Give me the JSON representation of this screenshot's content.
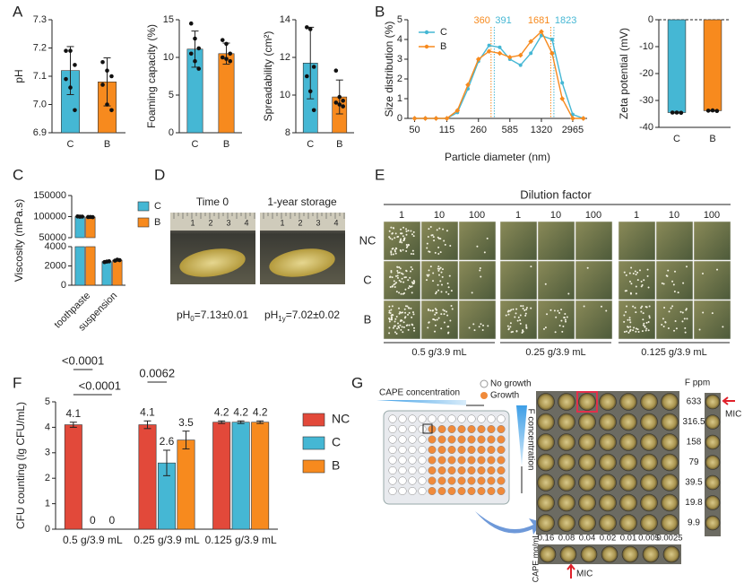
{
  "panel_labels": [
    "A",
    "B",
    "C",
    "D",
    "E",
    "F",
    "G"
  ],
  "chart_data": [
    {
      "type": "bar",
      "ylabel": "pH",
      "categories": [
        "C",
        "B"
      ],
      "values": [
        7.12,
        7.08
      ],
      "errors": [
        0.085,
        0.085
      ],
      "colors": [
        "#45b7d4",
        "#f78a1e"
      ],
      "points": [
        [
          7.19,
          7.19,
          7.14,
          7.09,
          7.06,
          6.98
        ],
        [
          7.15,
          7.12,
          7.1,
          7.07,
          7.0,
          6.98
        ]
      ],
      "ylim": [
        6.9,
        7.3
      ],
      "yticks": [
        6.9,
        {
          "value": 7,
          "label": "7.0"
        },
        7.1,
        7.2,
        7.3
      ]
    },
    {
      "type": "bar",
      "ylabel": "Foaming capacity (%)",
      "categories": [
        "C",
        "B"
      ],
      "values": [
        11.1,
        10.5
      ],
      "errors": [
        2.4,
        1.4
      ],
      "colors": [
        "#45b7d4",
        "#f78a1e"
      ],
      "points": [
        [
          14.5,
          12.5,
          11.2,
          10.5,
          9.5,
          8.5
        ],
        [
          12.3,
          11.8,
          10.5,
          10,
          9.8,
          9.5
        ]
      ],
      "ylim": [
        0,
        15
      ],
      "yticks": [
        0,
        5,
        10,
        15
      ]
    },
    {
      "type": "bar",
      "ylabel": "Spreadability (cm²)",
      "categories": [
        "C",
        "B"
      ],
      "values": [
        11.7,
        9.9
      ],
      "errors": [
        1.9,
        0.9
      ],
      "colors": [
        "#45b7d4",
        "#f78a1e"
      ],
      "points": [
        [
          13.6,
          13.5,
          11.5,
          11,
          10.2,
          9.2
        ],
        [
          11.3,
          9.9,
          9.7,
          9.6,
          9.5,
          9.4
        ]
      ],
      "ylim": [
        8,
        14
      ],
      "yticks": [
        8,
        10,
        12,
        14
      ]
    },
    {
      "type": "line",
      "xlabel": "Particle diameter (nm)",
      "ylabel": "Size distribution (%)",
      "log_x": true,
      "legend": "upper left",
      "x": [
        50,
        66,
        87,
        115,
        151,
        198,
        260,
        342,
        450,
        585,
        770,
        1005,
        1320,
        1740,
        2260,
        2965,
        3900
      ],
      "series": [
        {
          "name": "C",
          "color": "#45b7d4",
          "values": [
            0,
            0,
            0,
            0,
            0.3,
            1.5,
            2.9,
            3.7,
            3.6,
            3.0,
            2.7,
            3.3,
            4.2,
            4.0,
            1.8,
            0.2,
            0
          ]
        },
        {
          "name": "B",
          "color": "#f78a1e",
          "values": [
            0,
            0,
            0,
            0,
            0.4,
            1.7,
            3.0,
            3.4,
            3.3,
            3.1,
            3.2,
            3.9,
            4.4,
            3.3,
            1.0,
            0,
            0
          ]
        }
      ],
      "annotations": [
        {
          "x": 360,
          "color": "#f78a1e"
        },
        {
          "x": 391,
          "color": "#45b7d4"
        },
        {
          "x": 1681,
          "color": "#f78a1e"
        },
        {
          "x": 1823,
          "color": "#45b7d4"
        }
      ],
      "xlim": [
        42,
        4300
      ],
      "xticks": [
        50,
        115,
        260,
        585,
        1320,
        2965
      ],
      "ylim": [
        0,
        5
      ],
      "yticks": [
        0,
        1,
        2,
        3,
        4,
        5
      ]
    },
    {
      "type": "bar",
      "ylabel": "Zeta potential (mV)",
      "categories": [
        "C",
        "B"
      ],
      "values": [
        -34.5,
        -33.8
      ],
      "errors": [
        0.2,
        0.15
      ],
      "colors": [
        "#45b7d4",
        "#f78a1e"
      ],
      "points": [
        [
          -34.5,
          -34.5,
          -34.6
        ],
        [
          -33.8,
          -33.7,
          -33.9
        ]
      ],
      "zero_line": true,
      "ylim": [
        -40,
        0
      ],
      "yticks": [
        -40,
        -30,
        -20,
        -10,
        0
      ]
    },
    {
      "type": "bar",
      "ylabel": "Viscosity (mPa.s)",
      "categories": [
        "toothpaste",
        "suspension"
      ],
      "xtick_rotation": -45,
      "legend": "right",
      "series": [
        {
          "name": "C",
          "color": "#45b7d4",
          "values": [
            100000,
            2450
          ],
          "errors": [
            500,
            40
          ],
          "points": [
            [
              100500,
              99800,
              100000
            ],
            [
              2400,
              2450,
              2480
            ]
          ]
        },
        {
          "name": "B",
          "color": "#f78a1e",
          "values": [
            99000,
            2600
          ],
          "errors": [
            300,
            60
          ],
          "points": [
            [
              99000,
              99200,
              98800
            ],
            [
              2550,
              2650,
              2600
            ]
          ]
        }
      ],
      "ylim": [
        0,
        150000
      ],
      "ybreak": [
        4000,
        50000
      ],
      "yticks": [
        0,
        2000,
        4000,
        50000,
        100000,
        150000
      ]
    },
    {
      "type": "bar",
      "ylabel": "CFU counting (lg CFU/mL)",
      "categories": [
        "0.5 g/3.9 mL",
        "0.25 g/3.9 mL",
        "0.125 g/3.9 mL"
      ],
      "legend": "right",
      "show_values": true,
      "series": [
        {
          "name": "NC",
          "color": "#e2493a",
          "values": [
            4.1,
            4.1,
            4.2
          ],
          "errors": [
            0.1,
            0.15,
            0.05
          ]
        },
        {
          "name": "C",
          "color": "#45b7d4",
          "values": [
            0,
            2.6,
            4.2
          ],
          "errors": [
            0,
            0.5,
            0.05
          ]
        },
        {
          "name": "B",
          "color": "#f78a1e",
          "values": [
            0,
            3.5,
            4.2
          ],
          "errors": [
            0,
            0.35,
            0.05
          ]
        }
      ],
      "annotations": [
        {
          "label": "<0.0001"
        },
        {
          "label": "<0.0001"
        },
        {
          "label": "0.0062"
        }
      ],
      "ylim": [
        0,
        5
      ],
      "yticks": [
        0,
        1,
        2,
        3,
        4,
        5
      ]
    }
  ],
  "panel_d": {
    "titles": [
      "Time 0",
      "1-year storage"
    ],
    "ruler": [
      "1",
      "2",
      "3",
      "4"
    ],
    "captions": [
      {
        "base": "pH",
        "sub": "0",
        "rest": "=7.13±0.01"
      },
      {
        "base": "pH",
        "sub": "1y",
        "rest": "=7.02±0.02"
      }
    ]
  },
  "panel_e": {
    "title": "Dilution factor",
    "columns": [
      "1",
      "10",
      "100"
    ],
    "rows": [
      "NC",
      "C",
      "B"
    ],
    "groups": [
      "0.5 g/3.9 mL",
      "0.25 g/3.9 mL",
      "0.125 g/3.9 mL"
    ]
  },
  "panel_g": {
    "cape_label": "CAPE concentration",
    "legend": [
      "No growth",
      "Growth"
    ],
    "f_label": "F concentration",
    "f_title": "F ppm",
    "f_values": [
      633,
      316.5,
      158,
      79,
      39.5,
      19.8,
      9.9
    ],
    "cape_unit": "CAPE mg/mL",
    "cape_values": [
      0.16,
      0.08,
      0.04,
      0.02,
      0.01,
      0.005,
      0.0025
    ],
    "mic_labels": [
      "MIC",
      "MIC"
    ]
  }
}
